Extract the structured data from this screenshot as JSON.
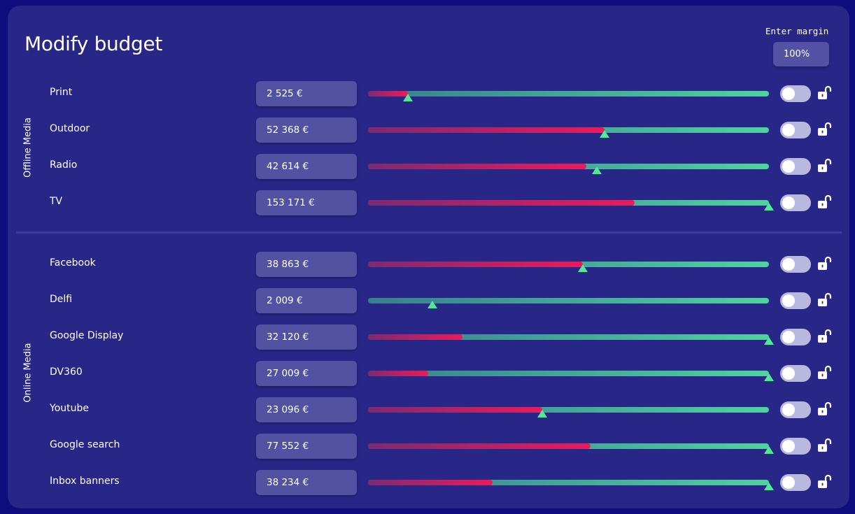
{
  "title": "Modify budget",
  "margin": {
    "label": "Enter margin",
    "value": "100%"
  },
  "groups": [
    {
      "label": "Offline Media",
      "rows": [
        {
          "label": "Print",
          "budget": "2 525 €",
          "fill": 0.1,
          "marker": 0.1,
          "enabled": false,
          "locked": false
        },
        {
          "label": "Outdoor",
          "budget": "52 368 €",
          "fill": 0.59,
          "marker": 0.59,
          "enabled": false,
          "locked": false
        },
        {
          "label": "Radio",
          "budget": "42 614 €",
          "fill": 0.545,
          "marker": 0.57,
          "enabled": false,
          "locked": false
        },
        {
          "label": "TV",
          "budget": "153 171 €",
          "fill": 0.665,
          "marker": 1.0,
          "enabled": false,
          "locked": false
        }
      ]
    },
    {
      "label": "Online Media",
      "rows": [
        {
          "label": "Facebook",
          "budget": "38 863 €",
          "fill": 0.535,
          "marker": 0.535,
          "enabled": false,
          "locked": false
        },
        {
          "label": "Delfi",
          "budget": "2 009 €",
          "fill": 0.0,
          "marker": 0.16,
          "enabled": false,
          "locked": false
        },
        {
          "label": "Google Display",
          "budget": "32 120 €",
          "fill": 0.235,
          "marker": 1.0,
          "enabled": false,
          "locked": false
        },
        {
          "label": "DV360",
          "budget": "27 009 €",
          "fill": 0.15,
          "marker": 1.0,
          "enabled": false,
          "locked": false
        },
        {
          "label": "Youtube",
          "budget": "23 096 €",
          "fill": 0.435,
          "marker": 0.435,
          "enabled": false,
          "locked": false
        },
        {
          "label": "Google search",
          "budget": "77 552 €",
          "fill": 0.555,
          "marker": 1.0,
          "enabled": false,
          "locked": false
        },
        {
          "label": "Inbox banners",
          "budget": "38 234 €",
          "fill": 0.31,
          "marker": 1.0,
          "enabled": false,
          "locked": false
        }
      ]
    }
  ],
  "colors": {
    "background": "#0e0d7e",
    "panel": "#282788",
    "fill_start": "#7d2a72",
    "fill_end": "#e81c5c",
    "track_start": "#3a7d90",
    "track_end": "#4fd2a0",
    "marker": "#56e69a",
    "toggle_off": "#b9b9df"
  },
  "icons": {
    "toggle": "toggle-switch",
    "lock": "unlocked-padlock-icon",
    "marker": "triangle-marker-icon"
  }
}
